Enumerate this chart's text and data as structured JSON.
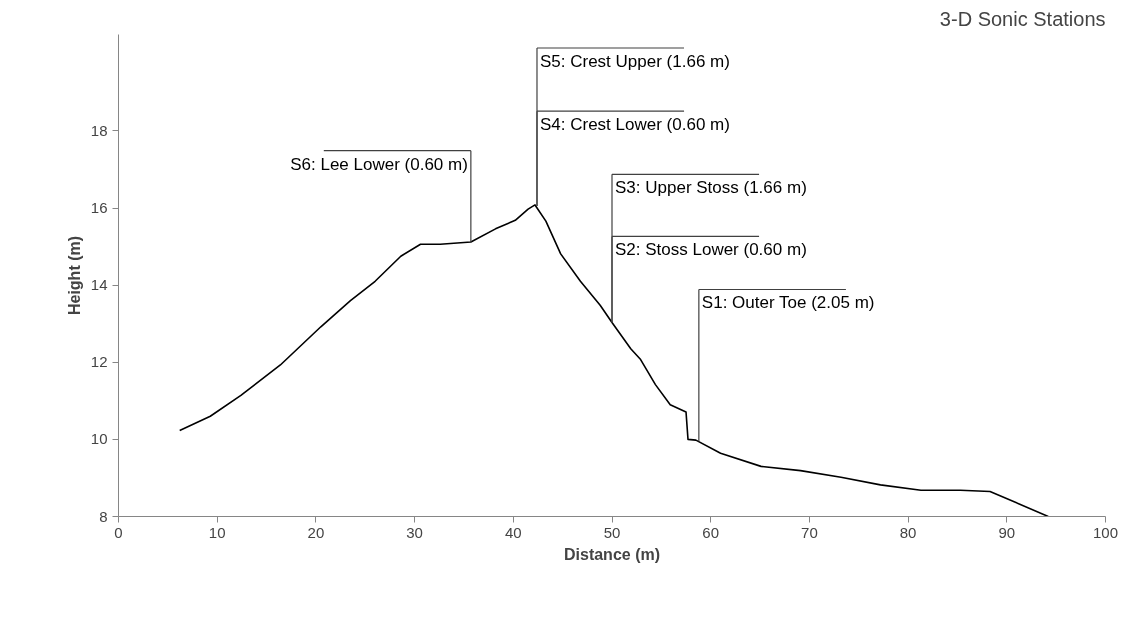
{
  "chart_data": {
    "type": "line",
    "title": "3-D Sonic Stations",
    "xlabel": "Distance (m)",
    "ylabel": "Height (m)",
    "x": [
      6.2,
      9.3,
      12.4,
      16.4,
      20.5,
      23.5,
      26.0,
      28.6,
      30.6,
      32.6,
      35.7,
      38.2,
      40.2,
      41.5,
      42.2,
      43.3,
      44.8,
      46.8,
      48.8,
      50.0,
      51.9,
      52.9,
      54.4,
      55.9,
      57.5,
      57.7,
      58.5,
      61.0,
      65.1,
      69.1,
      73.2,
      77.2,
      81.3,
      85.3,
      88.3,
      94.2
    ],
    "series": [
      {
        "color": "#000000",
        "values": [
          10.23,
          10.6,
          11.14,
          11.93,
          12.92,
          13.6,
          14.1,
          14.75,
          15.06,
          15.06,
          15.12,
          15.46,
          15.68,
          15.97,
          16.08,
          15.66,
          14.81,
          14.1,
          13.48,
          13.03,
          12.35,
          12.07,
          11.42,
          10.9,
          10.71,
          10.0,
          9.98,
          9.64,
          9.3,
          9.19,
          9.02,
          8.82,
          8.68,
          8.68,
          8.65,
          8.0
        ]
      }
    ],
    "xlim": [
      0,
      100
    ],
    "xticks": [
      0,
      10,
      20,
      30,
      40,
      50,
      60,
      70,
      80,
      90,
      100
    ],
    "ylim": [
      8,
      20.5
    ],
    "yticks": [
      8,
      10,
      12,
      14,
      16,
      18
    ],
    "grid": false,
    "marker": "none",
    "line_style": "solid",
    "annotations": [
      {
        "text": "S1: Outer Toe (2.05 m)",
        "x": 58.8,
        "y": 9.95
      },
      {
        "text": "S2: Stoss Lower (0.60 m)",
        "x": 50.0,
        "y": 13.03
      },
      {
        "text": "S3: Upper Stoss (1.66 m)",
        "x": 50.0,
        "y": 13.03
      },
      {
        "text": "S4: Crest Lower (0.60 m)",
        "x": 42.4,
        "y": 16.05
      },
      {
        "text": "S5: Crest Upper (1.66 m)",
        "x": 42.4,
        "y": 16.05
      },
      {
        "text": "S6: Lee Lower (0.60 m)",
        "x": 35.7,
        "y": 15.12
      }
    ]
  }
}
